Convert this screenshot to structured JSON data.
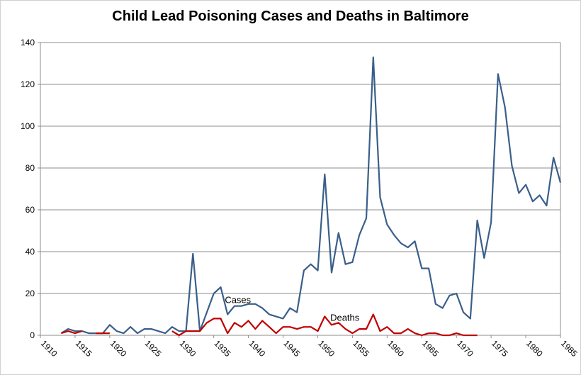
{
  "chart_data": {
    "type": "line",
    "title": "Child Lead Poisoning Cases and Deaths in Baltimore",
    "xlabel": "",
    "ylabel": "",
    "xlim": [
      1910,
      1985
    ],
    "ylim": [
      0,
      140
    ],
    "y_ticks": [
      0,
      20,
      40,
      60,
      80,
      100,
      120,
      140
    ],
    "x_ticks": [
      1910,
      1915,
      1920,
      1925,
      1930,
      1935,
      1940,
      1945,
      1950,
      1955,
      1960,
      1965,
      1970,
      1975,
      1980,
      1985
    ],
    "grid": "horizontal",
    "legend": "none",
    "series": [
      {
        "name": "Cases",
        "color": "#3a5f8a",
        "points": [
          [
            1913,
            1
          ],
          [
            1914,
            3
          ],
          [
            1915,
            2
          ],
          [
            1916,
            2
          ],
          [
            1917,
            1
          ],
          [
            1918,
            1
          ],
          [
            1919,
            1
          ],
          [
            1920,
            5
          ],
          [
            1921,
            2
          ],
          [
            1922,
            1
          ],
          [
            1923,
            4
          ],
          [
            1924,
            1
          ],
          [
            1925,
            3
          ],
          [
            1926,
            3
          ],
          [
            1927,
            2
          ],
          [
            1928,
            1
          ],
          [
            1929,
            4
          ],
          [
            1930,
            2
          ],
          [
            1931,
            2
          ],
          [
            1932,
            39
          ],
          [
            1933,
            2
          ],
          [
            1934,
            11
          ],
          [
            1935,
            20
          ],
          [
            1936,
            23
          ],
          [
            1937,
            10
          ],
          [
            1938,
            14
          ],
          [
            1939,
            14
          ],
          [
            1940,
            15
          ],
          [
            1941,
            15
          ],
          [
            1942,
            13
          ],
          [
            1943,
            10
          ],
          [
            1944,
            9
          ],
          [
            1945,
            8
          ],
          [
            1946,
            13
          ],
          [
            1947,
            11
          ],
          [
            1948,
            31
          ],
          [
            1949,
            34
          ],
          [
            1950,
            31
          ],
          [
            1951,
            77
          ],
          [
            1952,
            30
          ],
          [
            1953,
            49
          ],
          [
            1954,
            34
          ],
          [
            1955,
            35
          ],
          [
            1956,
            48
          ],
          [
            1957,
            56
          ],
          [
            1958,
            133
          ],
          [
            1959,
            66
          ],
          [
            1960,
            53
          ],
          [
            1961,
            48
          ],
          [
            1962,
            44
          ],
          [
            1963,
            42
          ],
          [
            1964,
            45
          ],
          [
            1965,
            32
          ],
          [
            1966,
            32
          ],
          [
            1967,
            15
          ],
          [
            1968,
            13
          ],
          [
            1969,
            19
          ],
          [
            1970,
            20
          ],
          [
            1971,
            11
          ],
          [
            1972,
            8
          ],
          [
            1973,
            55
          ],
          [
            1974,
            37
          ],
          [
            1975,
            54
          ],
          [
            1976,
            125
          ],
          [
            1977,
            109
          ],
          [
            1978,
            81
          ],
          [
            1979,
            68
          ],
          [
            1980,
            72
          ],
          [
            1981,
            64
          ],
          [
            1982,
            67
          ],
          [
            1983,
            62
          ],
          [
            1984,
            85
          ],
          [
            1985,
            73
          ]
        ]
      },
      {
        "name": "Deaths",
        "color": "#c00000",
        "segments": [
          [
            [
              1913,
              1
            ],
            [
              1914,
              2
            ],
            [
              1915,
              1
            ],
            [
              1916,
              2
            ]
          ],
          [
            [
              1918,
              1
            ],
            [
              1919,
              1
            ],
            [
              1920,
              1
            ]
          ],
          [
            [
              1929,
              2
            ],
            [
              1930,
              0
            ],
            [
              1931,
              2
            ],
            [
              1932,
              2
            ],
            [
              1933,
              2
            ],
            [
              1934,
              6
            ],
            [
              1935,
              8
            ],
            [
              1936,
              8
            ],
            [
              1937,
              1
            ],
            [
              1938,
              6
            ],
            [
              1939,
              4
            ],
            [
              1940,
              7
            ],
            [
              1941,
              3
            ],
            [
              1942,
              7
            ],
            [
              1943,
              4
            ],
            [
              1944,
              1
            ],
            [
              1945,
              4
            ],
            [
              1946,
              4
            ],
            [
              1947,
              3
            ],
            [
              1948,
              4
            ],
            [
              1949,
              4
            ],
            [
              1950,
              2
            ],
            [
              1951,
              9
            ],
            [
              1952,
              5
            ],
            [
              1953,
              6
            ],
            [
              1954,
              3
            ],
            [
              1955,
              1
            ],
            [
              1956,
              3
            ],
            [
              1957,
              3
            ],
            [
              1958,
              10
            ],
            [
              1959,
              2
            ],
            [
              1960,
              4
            ],
            [
              1961,
              1
            ],
            [
              1962,
              1
            ],
            [
              1963,
              3
            ],
            [
              1964,
              1
            ],
            [
              1965,
              0
            ],
            [
              1966,
              1
            ],
            [
              1967,
              1
            ],
            [
              1968,
              0
            ],
            [
              1969,
              0
            ],
            [
              1970,
              1
            ],
            [
              1971,
              0
            ],
            [
              1972,
              0
            ],
            [
              1973,
              0
            ]
          ]
        ]
      }
    ],
    "annotations": [
      {
        "text": "Cases",
        "x": 1936.6,
        "y": 15.5
      },
      {
        "text": "Deaths",
        "x": 1951.8,
        "y": 7
      }
    ]
  }
}
